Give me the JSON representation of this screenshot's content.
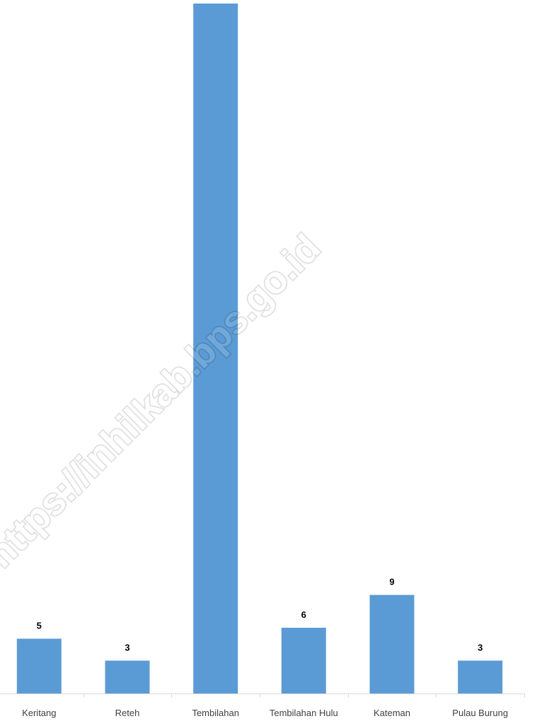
{
  "chart_data": {
    "type": "bar",
    "title": "",
    "xlabel": "",
    "ylabel": "",
    "categories": [
      "Keritang",
      "Reteh",
      "Tembilahan",
      "Tembilahan Hulu",
      "Kateman",
      "Pulau Burung"
    ],
    "values": [
      5,
      3,
      63,
      6,
      9,
      3
    ],
    "data_labels": [
      "5",
      "3",
      "",
      "6",
      "9",
      "3"
    ],
    "ylim": [
      0,
      63
    ],
    "grid": false,
    "legend": "none",
    "bar_color": "#5b9bd5"
  },
  "watermark": "https://inhilkab.bps.go.id"
}
